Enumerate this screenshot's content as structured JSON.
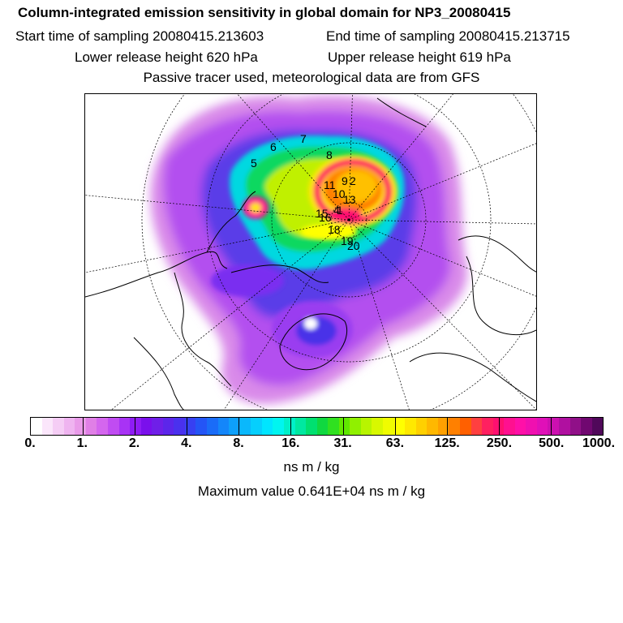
{
  "title": "Column-integrated emission sensitivity in global domain for NP3_20080415",
  "sampling": {
    "start": "Start time of sampling 20080415.213603",
    "end": "End time of sampling 20080415.213715"
  },
  "release": {
    "lower": "Lower release height  620 hPa",
    "upper": "Upper release height  619 hPa"
  },
  "note": "Passive tracer used, meteorological data are from GFS",
  "colorbar": {
    "colors": [
      "#ffffff",
      "#fbe6fb",
      "#f5cdf5",
      "#efb4f0",
      "#e99be9",
      "#e07fe6",
      "#d466ee",
      "#c04cf2",
      "#a833f5",
      "#8f1cf5",
      "#7a10ec",
      "#6f1fe8",
      "#5c26ea",
      "#4a31ee",
      "#3740f2",
      "#2455f6",
      "#1a6cf8",
      "#1486fa",
      "#0ea0fb",
      "#0ab8fc",
      "#06cffd",
      "#00e5ff",
      "#00f5f0",
      "#00f0c8",
      "#00e8a0",
      "#00e070",
      "#10d840",
      "#30e020",
      "#60e800",
      "#90f000",
      "#b8f400",
      "#d8f800",
      "#f0fc00",
      "#ffff00",
      "#ffe800",
      "#ffd000",
      "#ffb800",
      "#ffa000",
      "#ff8000",
      "#ff6000",
      "#ff4040",
      "#ff2060",
      "#ff1070",
      "#ff1090",
      "#ff10a8",
      "#f010b0",
      "#e010b8",
      "#cc10b0",
      "#b010a0",
      "#901088",
      "#700870",
      "#50085a"
    ],
    "ticks": [
      "0.",
      "1.",
      "2.",
      "4.",
      "8.",
      "16.",
      "31.",
      "63.",
      "125.",
      "250.",
      "500.",
      "1000."
    ],
    "units": "ns m / kg"
  },
  "max_value": "Maximum value  0.641E+04 ns m / kg",
  "map": {
    "labels": [
      "5",
      "6",
      "7",
      "8",
      "9",
      "2",
      "11",
      "10",
      "13",
      "4",
      "1",
      "15",
      "16",
      "18",
      "19",
      "20"
    ]
  }
}
